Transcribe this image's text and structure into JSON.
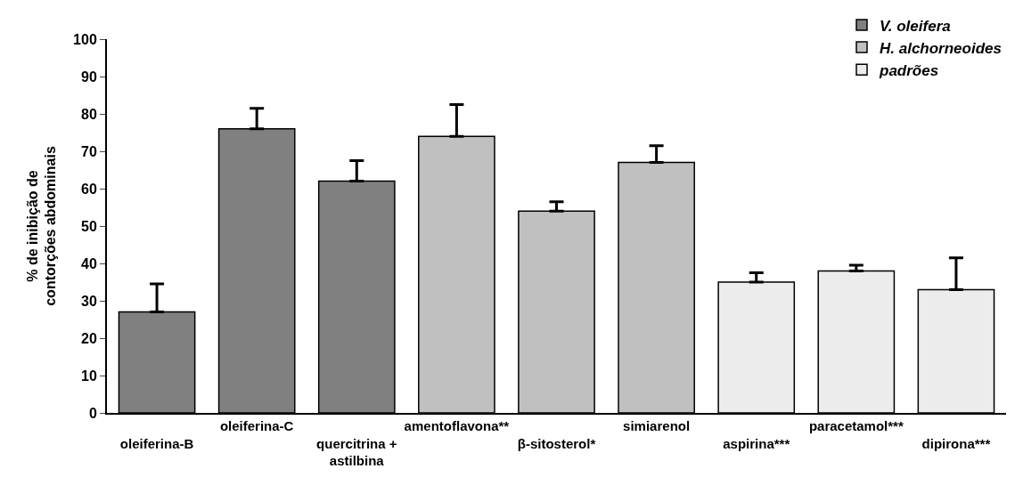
{
  "chart_data": {
    "type": "bar",
    "ylabel": "% de inibição de\ncontorções abdominais",
    "categories": [
      "oleiferina-B",
      "oleiferina-C",
      "quercitrina +\nastilbina",
      "amentoflavona**",
      "β-sitosterol*",
      "simiarenol",
      "aspirina***",
      "paracetamol***",
      "dipirona***"
    ],
    "series": [
      {
        "name": "V. oleifera",
        "color": "#808080",
        "values": [
          27,
          76,
          62,
          null,
          null,
          null,
          null,
          null,
          null
        ],
        "errors": [
          [
            27,
            34.5
          ],
          [
            76,
            81.5
          ],
          [
            62,
            67.5
          ],
          null,
          null,
          null,
          null,
          null,
          null
        ]
      },
      {
        "name": "H. alchorneoides",
        "color": "#c0c0c0",
        "values": [
          null,
          null,
          null,
          74,
          54,
          67,
          null,
          null,
          null
        ],
        "errors": [
          null,
          null,
          null,
          [
            74,
            82.5
          ],
          [
            54,
            56.5
          ],
          [
            67,
            71.5
          ],
          null,
          null,
          null
        ]
      },
      {
        "name": "padrões",
        "color": "#ececec",
        "values": [
          null,
          null,
          null,
          null,
          null,
          null,
          35,
          38,
          33
        ],
        "errors": [
          null,
          null,
          null,
          null,
          null,
          null,
          [
            35,
            37.5
          ],
          [
            38,
            39.5
          ],
          [
            33,
            41.5
          ]
        ]
      }
    ],
    "ylim": [
      0,
      100
    ],
    "yticks": [
      0,
      10,
      20,
      30,
      40,
      50,
      60,
      70,
      80,
      90,
      100
    ],
    "legend": "top right"
  }
}
